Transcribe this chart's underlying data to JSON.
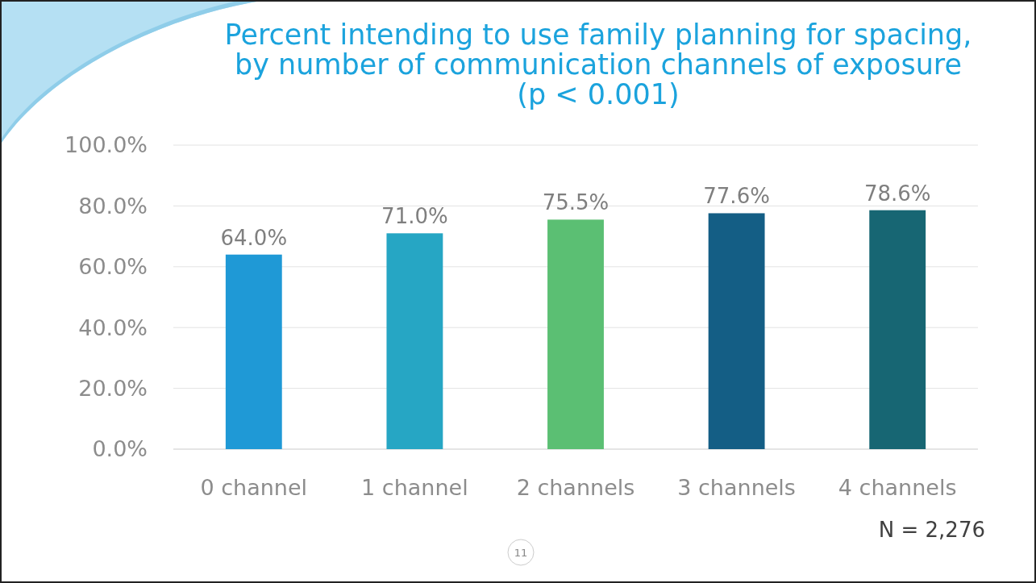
{
  "chart_data": {
    "type": "bar",
    "title": "Percent intending to use family planning for spacing,\nby number of communication channels of exposure\n(p < 0.001)",
    "categories": [
      "0 channel",
      "1 channel",
      "2 channels",
      "3 channels",
      "4 channels"
    ],
    "values": [
      64.0,
      71.0,
      75.5,
      77.6,
      78.6
    ],
    "colors": [
      "#1f99d6",
      "#26a6c4",
      "#5bbf73",
      "#145e85",
      "#176673"
    ],
    "value_labels": [
      "64.0%",
      "71.0%",
      "75.5%",
      "77.6%",
      "78.6%"
    ],
    "ylim": [
      0,
      100
    ],
    "yticks": [
      {
        "value": 0,
        "label": "0.0%"
      },
      {
        "value": 20,
        "label": "20.0%"
      },
      {
        "value": 40,
        "label": "40.0%"
      },
      {
        "value": 60,
        "label": "60.0%"
      },
      {
        "value": 80,
        "label": "80.0%"
      },
      {
        "value": 100,
        "label": "100.0%"
      }
    ],
    "grid": "y",
    "annotations": [
      "N = 2,276",
      "11"
    ]
  }
}
